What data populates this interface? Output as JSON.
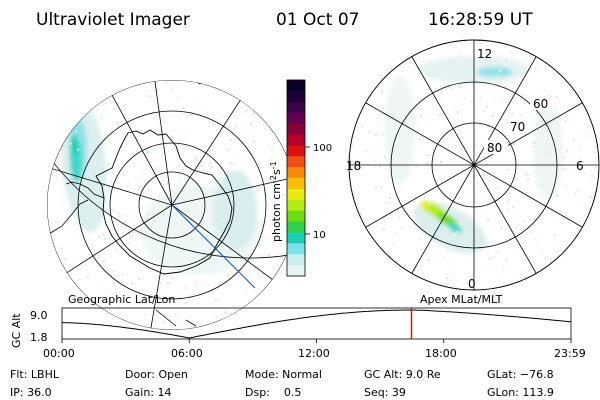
{
  "header": {
    "instrument": "Ultraviolet Imager",
    "date": "01 Oct 07",
    "time": "16:28:59 UT"
  },
  "colorbar": {
    "unit_base": "photon cm",
    "unit_exp1": "-2",
    "unit_mid": "s",
    "unit_exp2": "-1",
    "ticks": [
      "100",
      "10"
    ],
    "colors": [
      "#0a0026",
      "#1e0036",
      "#3a0048",
      "#600050",
      "#88003a",
      "#b40028",
      "#dc1010",
      "#f05018",
      "#f88c08",
      "#f8c000",
      "#eaea10",
      "#b4ec12",
      "#6cdc12",
      "#30d04a",
      "#18d0b4",
      "#80e0e8",
      "#c8eeee",
      "#e8f4f4"
    ]
  },
  "left_map": {
    "label": "Geographic Lat/Lon"
  },
  "right_map": {
    "label": "Apex MLat/MLT",
    "lat_labels": [
      "60",
      "70",
      "80"
    ],
    "mlt_labels": {
      "top": "12",
      "left": "18",
      "right": "6",
      "bottom": "0"
    }
  },
  "timeline": {
    "y_axis": "GC Alt",
    "y_ticks": [
      "9.0",
      "1.8"
    ],
    "x_ticks": [
      "00:00",
      "06:00",
      "12:00",
      "18:00",
      "23:59"
    ],
    "current_time_hours": 16.48
  },
  "footer": {
    "row1": [
      {
        "key": "filter",
        "label": "Flt: LBHL"
      },
      {
        "key": "door",
        "label": "Door: Open"
      },
      {
        "key": "mode",
        "label": "Mode: Normal"
      },
      {
        "key": "gcalt",
        "label": "GC Alt: 9.0 Re"
      },
      {
        "key": "glat",
        "label": "GLat: −76.8"
      }
    ],
    "row2": [
      {
        "key": "ip",
        "label": "IP: 36.0"
      },
      {
        "key": "gain",
        "label": "Gain: 14"
      },
      {
        "key": "dsp",
        "label": "Dsp:    0.5"
      },
      {
        "key": "seq",
        "label": "Seq: 39"
      },
      {
        "key": "glon",
        "label": "GLon: 113.9"
      }
    ]
  }
}
